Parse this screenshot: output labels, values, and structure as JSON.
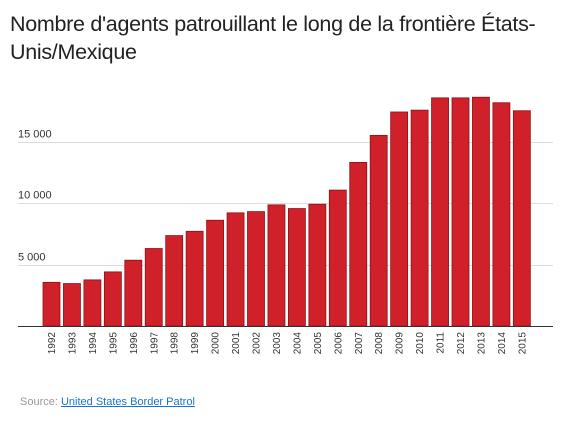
{
  "chart_data": {
    "type": "bar",
    "title": "Nombre d'agents patrouillant le long de la frontière États-Unis/Mexique",
    "categories": [
      "1992",
      "1993",
      "1994",
      "1995",
      "1996",
      "1997",
      "1998",
      "1999",
      "2000",
      "2001",
      "2002",
      "2003",
      "2004",
      "2005",
      "2006",
      "2007",
      "2008",
      "2009",
      "2010",
      "2011",
      "2012",
      "2013",
      "2014",
      "2015"
    ],
    "series": [
      {
        "values": [
          3550,
          3450,
          3750,
          4400,
          5350,
          6300,
          7350,
          7700,
          8600,
          9200,
          9300,
          9850,
          9550,
          9900,
          11050,
          13300,
          15500,
          17400,
          17550,
          18550,
          18550,
          18600,
          18150,
          17500
        ]
      }
    ],
    "ylim": [
      0,
      20000
    ],
    "yticks": [
      5000,
      10000,
      15000
    ],
    "ytick_labels": [
      "5 000",
      "10 000",
      "15 000"
    ],
    "xlabel": "",
    "ylabel": "",
    "grid": true,
    "bar_color": "#d0212a"
  },
  "source": {
    "label": "Source:",
    "link_text": "United States Border Patrol"
  }
}
